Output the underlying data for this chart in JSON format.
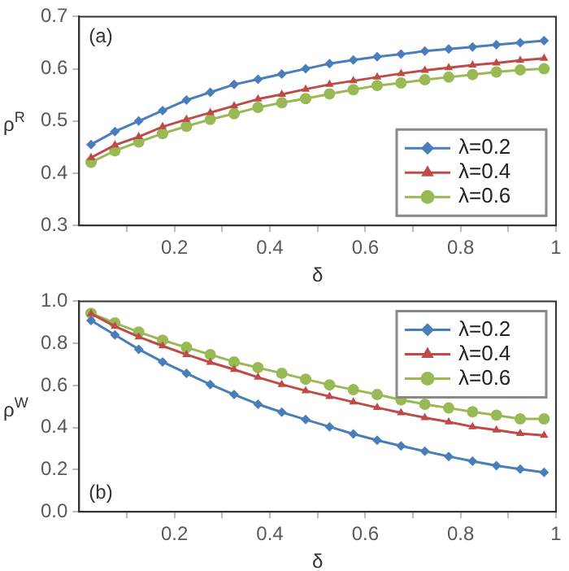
{
  "chart_data": [
    {
      "type": "line",
      "ylabel": "ρ$^{R}$",
      "xlabel": "δ",
      "annotations": [
        "(a)"
      ],
      "x": [
        0.025,
        0.075,
        0.125,
        0.175,
        0.225,
        0.275,
        0.325,
        0.375,
        0.425,
        0.475,
        0.525,
        0.575,
        0.625,
        0.675,
        0.725,
        0.775,
        0.825,
        0.875,
        0.925,
        0.975
      ],
      "series": [
        {
          "name": "λ=0.2",
          "color": "#4a7ebb",
          "marker": "diamond",
          "values": [
            0.455,
            0.48,
            0.5,
            0.52,
            0.54,
            0.555,
            0.57,
            0.58,
            0.59,
            0.6,
            0.61,
            0.617,
            0.623,
            0.628,
            0.634,
            0.638,
            0.642,
            0.646,
            0.65,
            0.654
          ]
        },
        {
          "name": "λ=0.4",
          "color": "#be4b48",
          "marker": "triangle",
          "values": [
            0.43,
            0.454,
            0.47,
            0.489,
            0.503,
            0.516,
            0.529,
            0.542,
            0.551,
            0.561,
            0.57,
            0.577,
            0.584,
            0.591,
            0.597,
            0.602,
            0.607,
            0.611,
            0.616,
            0.62
          ]
        },
        {
          "name": "λ=0.6",
          "color": "#98b954",
          "marker": "circle",
          "values": [
            0.421,
            0.443,
            0.46,
            0.476,
            0.49,
            0.503,
            0.514,
            0.526,
            0.535,
            0.543,
            0.552,
            0.56,
            0.568,
            0.573,
            0.579,
            0.584,
            0.589,
            0.594,
            0.598,
            0.6
          ]
        }
      ],
      "xlim": [
        0,
        1
      ],
      "xticks": [
        {
          "value": 0.1,
          "label": null
        },
        0.2,
        {
          "value": 0.3,
          "label": null
        },
        0.4,
        {
          "value": 0.5,
          "label": null
        },
        0.6,
        {
          "value": 0.7,
          "label": null
        },
        0.8,
        {
          "value": 0.9,
          "label": null
        },
        1
      ],
      "ylim": [
        0.3,
        0.7
      ],
      "yticks": [
        0.3,
        0.4,
        0.5,
        0.6,
        0.7
      ],
      "grid": false,
      "legend": "bottom right",
      "line_style": "solid"
    },
    {
      "type": "line",
      "ylabel": "ρ$^{W}$",
      "xlabel": "δ",
      "annotations": [
        "(b)"
      ],
      "x": [
        0.025,
        0.075,
        0.125,
        0.175,
        0.225,
        0.275,
        0.325,
        0.375,
        0.425,
        0.475,
        0.525,
        0.575,
        0.625,
        0.675,
        0.725,
        0.775,
        0.825,
        0.875,
        0.925,
        0.975
      ],
      "series": [
        {
          "name": "λ=0.2",
          "color": "#4a7ebb",
          "marker": "diamond",
          "values": [
            0.909,
            0.84,
            0.772,
            0.712,
            0.658,
            0.605,
            0.557,
            0.511,
            0.473,
            0.438,
            0.404,
            0.37,
            0.34,
            0.313,
            0.288,
            0.263,
            0.24,
            0.219,
            0.203,
            0.187
          ]
        },
        {
          "name": "λ=0.4",
          "color": "#be4b48",
          "marker": "triangle",
          "values": [
            0.941,
            0.881,
            0.831,
            0.788,
            0.747,
            0.71,
            0.676,
            0.639,
            0.605,
            0.575,
            0.548,
            0.521,
            0.495,
            0.47,
            0.447,
            0.427,
            0.404,
            0.388,
            0.372,
            0.363
          ]
        },
        {
          "name": "λ=0.6",
          "color": "#98b954",
          "marker": "circle",
          "values": [
            0.943,
            0.897,
            0.854,
            0.815,
            0.781,
            0.747,
            0.712,
            0.685,
            0.658,
            0.63,
            0.603,
            0.58,
            0.557,
            0.532,
            0.511,
            0.493,
            0.475,
            0.459,
            0.441,
            0.441
          ]
        }
      ],
      "xlim": [
        0,
        1
      ],
      "xticks": [
        {
          "value": 0.1,
          "label": null
        },
        0.2,
        {
          "value": 0.3,
          "label": null
        },
        0.4,
        {
          "value": 0.5,
          "label": null
        },
        0.6,
        {
          "value": 0.7,
          "label": null
        },
        0.8,
        {
          "value": 0.9,
          "label": null
        },
        1
      ],
      "ylim": [
        0,
        1
      ],
      "yticks": [
        {
          "value": 0,
          "label": "0.0"
        },
        0.2,
        0.4,
        0.6,
        0.8,
        {
          "value": 1,
          "label": "1.0"
        }
      ],
      "grid": false,
      "legend": "top right",
      "line_style": "solid"
    }
  ]
}
